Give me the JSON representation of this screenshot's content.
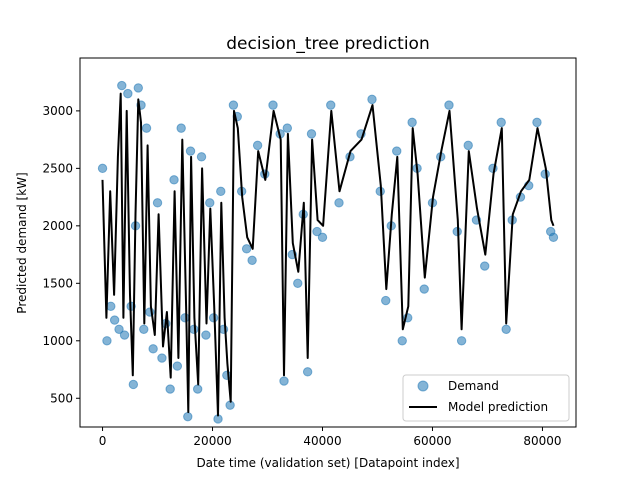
{
  "chart_data": {
    "type": "scatter",
    "title": "decision_tree prediction",
    "xlabel": "Date time (validation set) [Datapoint index]",
    "ylabel": "Predicted demand [kW]",
    "xlim": [
      -4100,
      86100
    ],
    "ylim": [
      250,
      3460
    ],
    "xticks": [
      0,
      20000,
      40000,
      60000,
      80000
    ],
    "yticks": [
      500,
      1000,
      1500,
      2000,
      2500,
      3000
    ],
    "grid": false,
    "legend_position": "lower right",
    "colors": {
      "demand": "#1f77b4",
      "prediction": "#000000"
    },
    "series": [
      {
        "name": "Demand",
        "kind": "scatter",
        "x": [
          0,
          800,
          1500,
          2200,
          3000,
          3500,
          4000,
          4600,
          5200,
          5600,
          6000,
          6500,
          7000,
          7500,
          8000,
          8600,
          9200,
          10000,
          10800,
          11500,
          12300,
          13000,
          13600,
          14300,
          15000,
          15500,
          16000,
          16600,
          17300,
          18000,
          18800,
          19500,
          20200,
          21000,
          21500,
          22000,
          22600,
          23200,
          23800,
          24500,
          25300,
          26200,
          27200,
          28200,
          29500,
          31000,
          32300,
          33000,
          33600,
          34500,
          35500,
          36500,
          37300,
          38000,
          39000,
          40000,
          41500,
          43000,
          45000,
          47000,
          49000,
          50500,
          51500,
          52500,
          53500,
          54500,
          55500,
          56300,
          57200,
          58500,
          60000,
          61500,
          63000,
          64500,
          65300,
          66500,
          68000,
          69500,
          71000,
          72500,
          73400,
          74500,
          76000,
          77500,
          79000,
          80500,
          81500,
          82000
        ],
        "y": [
          2500,
          1000,
          1300,
          1180,
          1100,
          3220,
          1050,
          3150,
          1300,
          620,
          2000,
          3200,
          3050,
          1100,
          2850,
          1250,
          930,
          2200,
          850,
          1150,
          580,
          2400,
          780,
          2850,
          1200,
          340,
          2650,
          1100,
          580,
          2600,
          1050,
          2200,
          1200,
          320,
          2300,
          1100,
          700,
          440,
          3050,
          2950,
          2300,
          1800,
          1700,
          2700,
          2450,
          3050,
          2800,
          650,
          2850,
          1750,
          1500,
          2100,
          730,
          2800,
          1950,
          1900,
          3050,
          2200,
          2600,
          2800,
          3100,
          2300,
          1350,
          2000,
          2650,
          1000,
          1200,
          2900,
          2500,
          1450,
          2200,
          2600,
          3050,
          1950,
          1000,
          2700,
          2050,
          1650,
          2500,
          2900,
          1100,
          2050,
          2250,
          2350,
          2900,
          2450,
          1950,
          1900
        ]
      },
      {
        "name": "Model prediction",
        "kind": "line",
        "x": [
          0,
          700,
          1400,
          2100,
          2800,
          3300,
          3800,
          4400,
          5000,
          5500,
          6000,
          6500,
          7000,
          7600,
          8200,
          8800,
          9500,
          10200,
          11000,
          11700,
          12400,
          13100,
          13800,
          14500,
          15200,
          15600,
          16100,
          16700,
          17400,
          18100,
          18900,
          19600,
          20300,
          21000,
          21600,
          22200,
          22700,
          23300,
          23900,
          24600,
          25400,
          26300,
          27300,
          28300,
          29600,
          31100,
          32400,
          33000,
          33700,
          34600,
          35600,
          36600,
          37300,
          38100,
          39100,
          40100,
          41600,
          43100,
          45100,
          47100,
          49100,
          50600,
          51600,
          52600,
          53600,
          54600,
          55600,
          56400,
          57300,
          58600,
          60100,
          61600,
          63100,
          64600,
          65300,
          66600,
          68100,
          69600,
          71100,
          72600,
          73400,
          74600,
          76100,
          77600,
          79100,
          80600,
          81600,
          82000
        ],
        "y": [
          2400,
          1200,
          2300,
          1400,
          2600,
          3150,
          1200,
          3000,
          1400,
          700,
          2100,
          3100,
          2900,
          1150,
          2700,
          1300,
          1050,
          2100,
          950,
          1250,
          680,
          2300,
          850,
          2750,
          1300,
          380,
          2600,
          1200,
          620,
          2500,
          1150,
          2150,
          1300,
          350,
          2200,
          1200,
          800,
          470,
          3000,
          2850,
          2250,
          1900,
          1800,
          2650,
          2400,
          3000,
          2750,
          700,
          2800,
          1850,
          1600,
          2200,
          850,
          2750,
          2050,
          2000,
          3000,
          2300,
          2650,
          2750,
          3050,
          2350,
          1450,
          2100,
          2600,
          1100,
          1300,
          2850,
          2450,
          1550,
          2250,
          2650,
          3000,
          2050,
          1100,
          2650,
          2150,
          1750,
          2450,
          2850,
          1150,
          2100,
          2300,
          2400,
          2850,
          2500,
          2050,
          2000
        ]
      }
    ]
  }
}
